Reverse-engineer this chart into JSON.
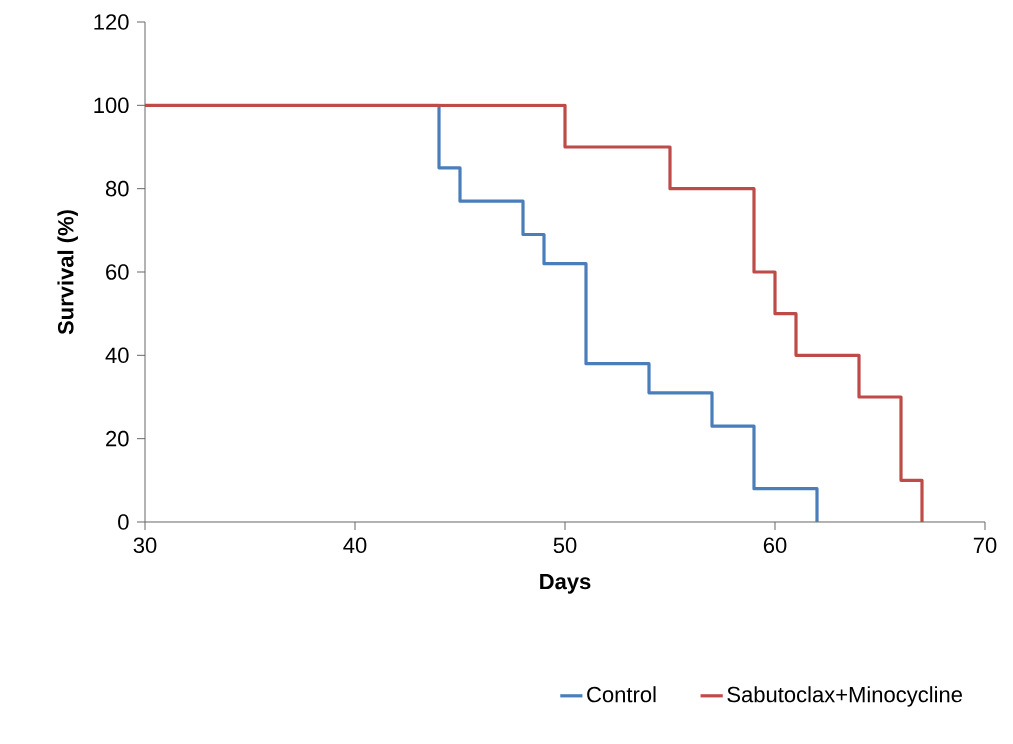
{
  "chart_data": {
    "type": "step",
    "xlabel": "Days",
    "ylabel": "Survival (%)",
    "xlim": [
      30,
      70
    ],
    "xticks": [
      30,
      40,
      50,
      60,
      70
    ],
    "ylim": [
      0,
      120
    ],
    "yticks": [
      0,
      20,
      40,
      60,
      80,
      100,
      120
    ],
    "grid": false,
    "legend": "bottom",
    "marker": "none",
    "line_style": "solid",
    "series": [
      {
        "name": "Control",
        "color": "#4a7ebb",
        "x": [
          30,
          44,
          45,
          48,
          49,
          51,
          54,
          57,
          59,
          62
        ],
        "values": [
          100,
          85,
          77,
          69,
          62,
          38,
          31,
          23,
          8,
          0
        ]
      },
      {
        "name": "Sabutoclax+Minocycline",
        "color": "#be4b48",
        "x": [
          30,
          50,
          55,
          59,
          60,
          61,
          64,
          66,
          67
        ],
        "values": [
          100,
          90,
          80,
          60,
          50,
          40,
          30,
          10,
          0
        ]
      }
    ]
  }
}
